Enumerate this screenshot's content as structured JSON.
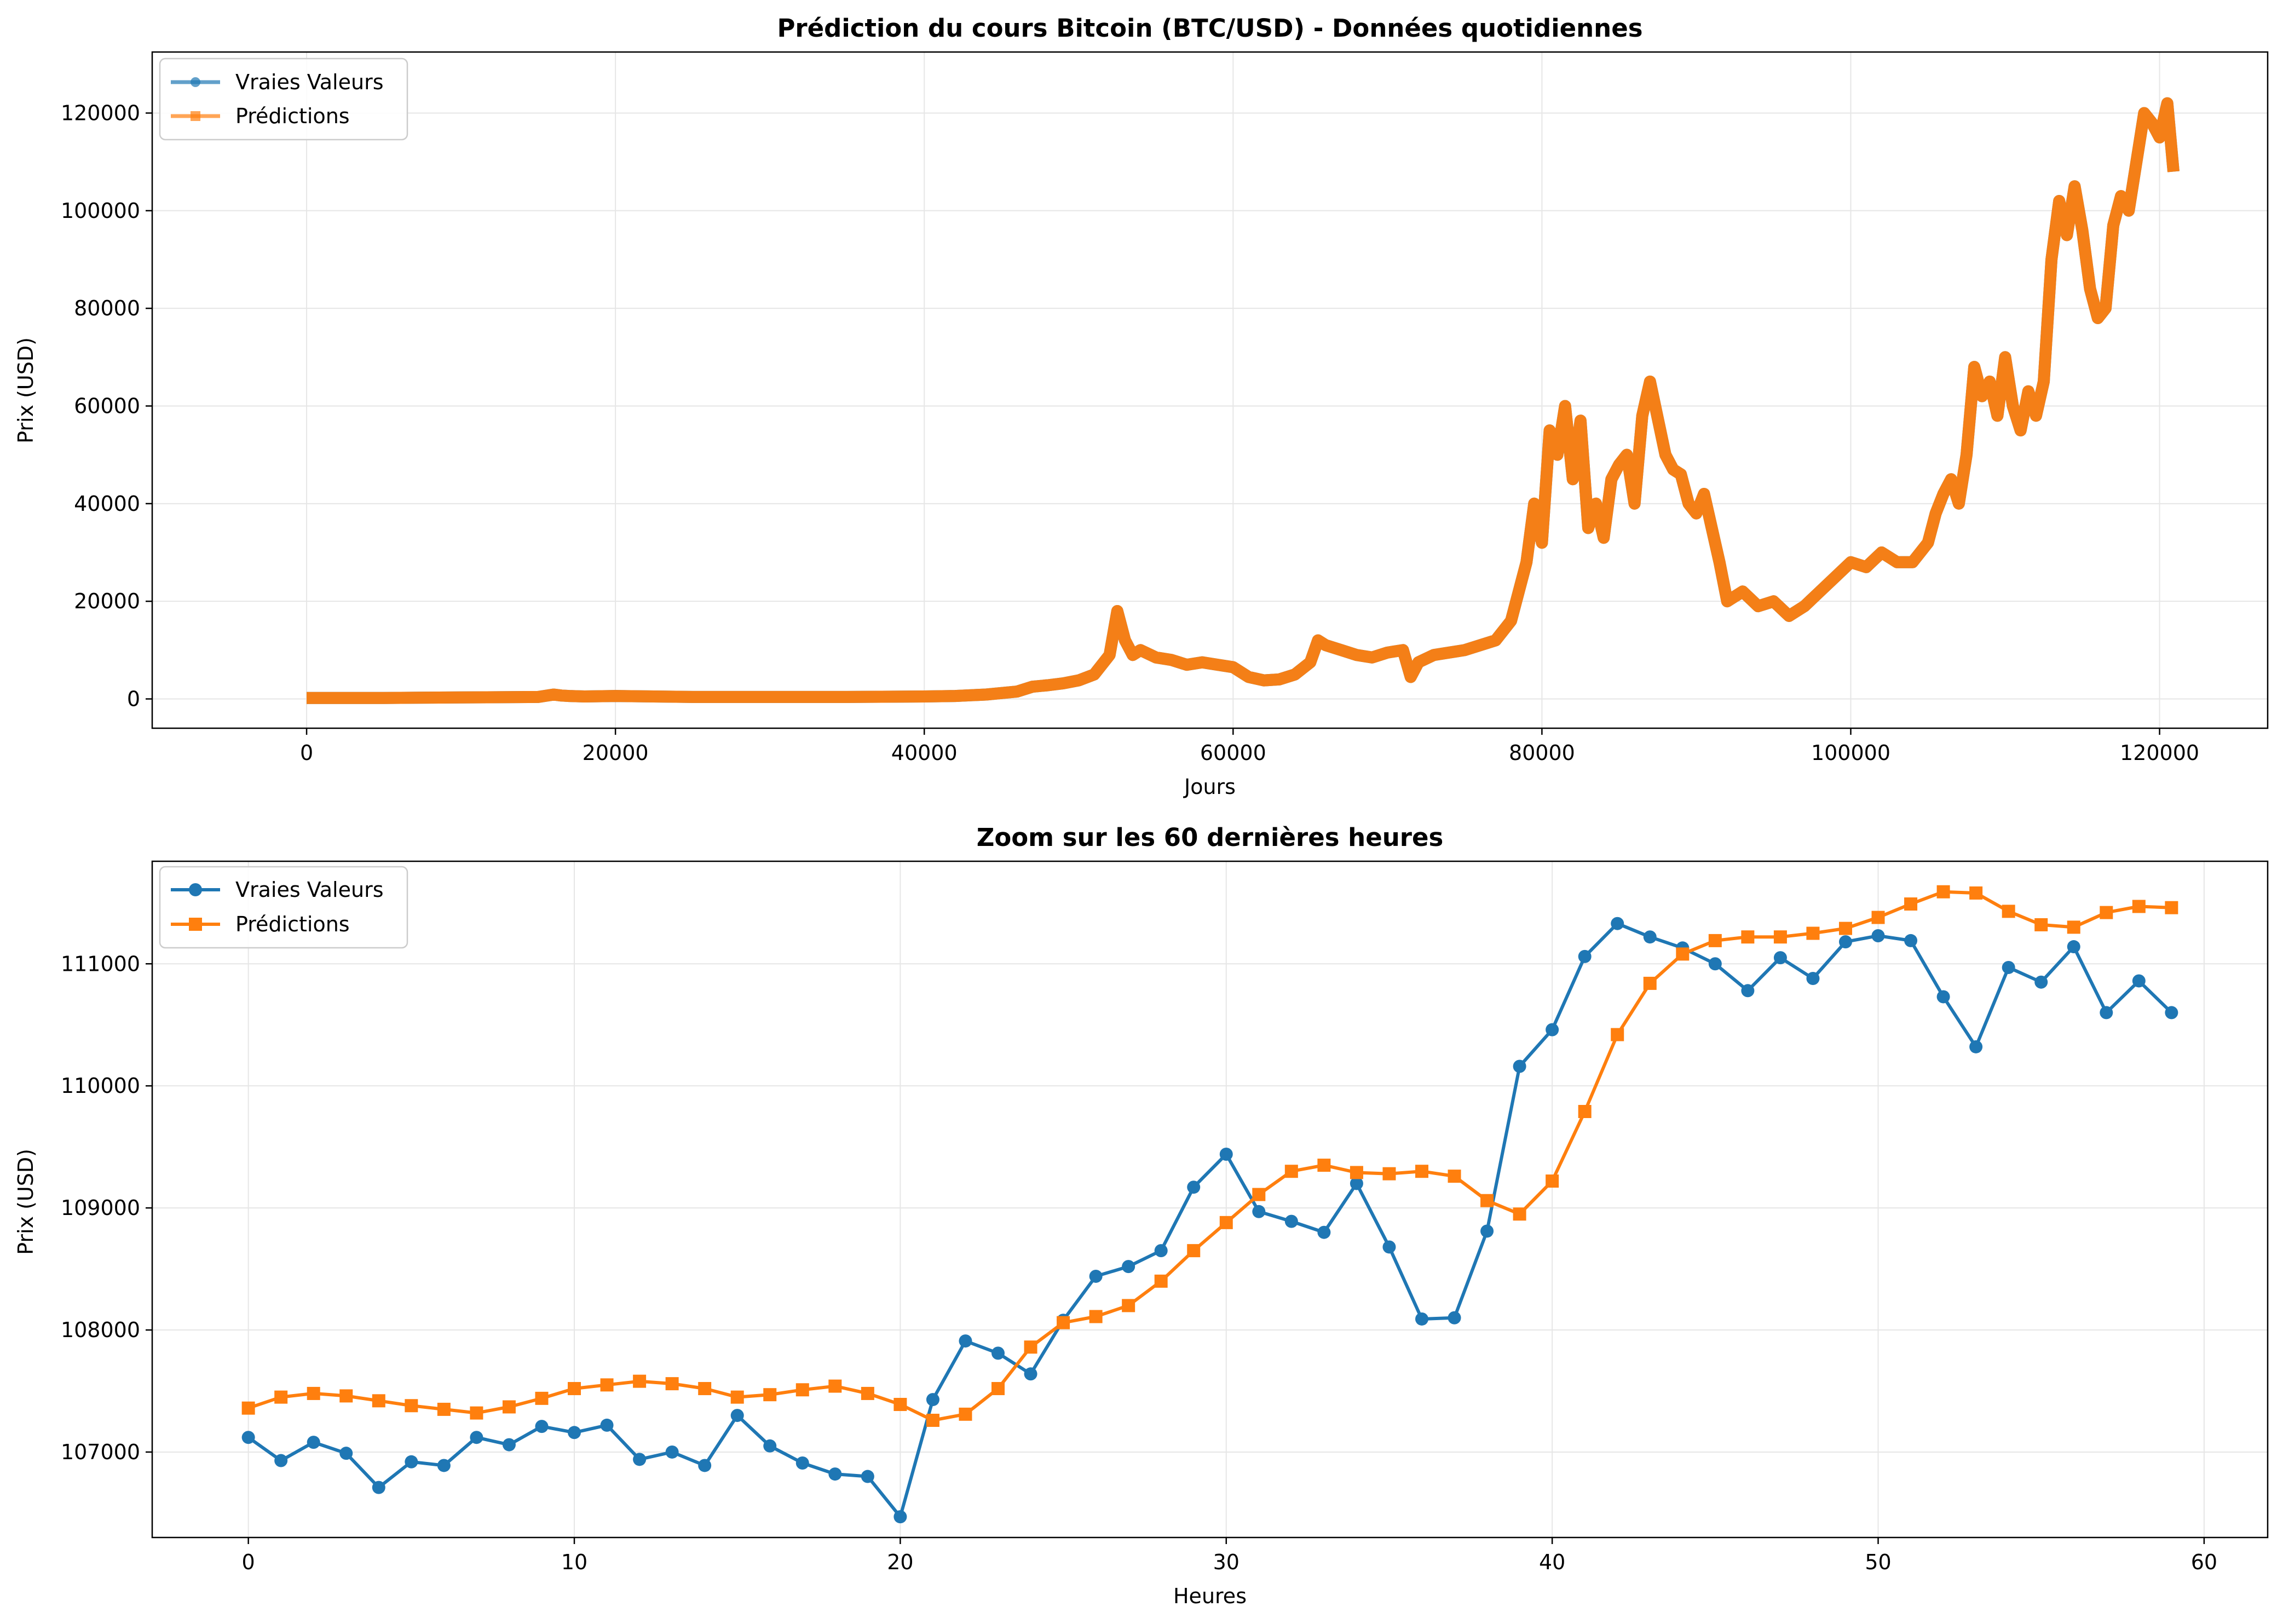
{
  "colors": {
    "true": "#1f77b4",
    "pred": "#ff7f0e",
    "grid": "#e6e6e6",
    "axes": "#000000",
    "legend_border": "#cccccc"
  },
  "chart_data": [
    {
      "type": "line",
      "title": "Prédiction du cours Bitcoin (BTC/USD) - Données quotidiennes",
      "xlabel": "Jours",
      "ylabel": "Prix (USD)",
      "xlim": [
        -10000,
        127000
      ],
      "ylim": [
        -6000,
        132500
      ],
      "xticks": [
        0,
        20000,
        40000,
        60000,
        80000,
        100000,
        120000
      ],
      "yticks": [
        0,
        20000,
        40000,
        60000,
        80000,
        100000,
        120000
      ],
      "grid": true,
      "legend": "top-left",
      "series": [
        {
          "name": "Vraies Valeurs",
          "marker": "circle",
          "color": "#1f77b4"
        },
        {
          "name": "Prédictions",
          "marker": "square",
          "color": "#ff7f0e"
        }
      ],
      "x": [
        0,
        5000,
        10000,
        15000,
        16000,
        16500,
        17000,
        18000,
        20000,
        25000,
        30000,
        35000,
        40000,
        42000,
        44000,
        46000,
        47000,
        48000,
        49000,
        50000,
        51000,
        52000,
        52500,
        53000,
        53500,
        54000,
        55000,
        56000,
        57000,
        58000,
        59000,
        60000,
        61000,
        62000,
        63000,
        64000,
        65000,
        65500,
        66000,
        67000,
        68000,
        69000,
        70000,
        71000,
        71500,
        72000,
        73000,
        74000,
        75000,
        76000,
        77000,
        78000,
        79000,
        79500,
        80000,
        80500,
        81000,
        81500,
        82000,
        82500,
        83000,
        83500,
        84000,
        84500,
        85000,
        85500,
        86000,
        86500,
        87000,
        88000,
        88500,
        89000,
        89500,
        90000,
        90500,
        91000,
        91500,
        92000,
        93000,
        94000,
        95000,
        96000,
        97000,
        98000,
        99000,
        100000,
        101000,
        102000,
        103000,
        104000,
        105000,
        105500,
        106000,
        106500,
        107000,
        107500,
        108000,
        108500,
        109000,
        109500,
        110000,
        110500,
        111000,
        111500,
        112000,
        112500,
        113000,
        113500,
        114000,
        114500,
        115000,
        115500,
        116000,
        116500,
        117000,
        117500,
        118000,
        118500,
        119000,
        119500,
        120000,
        120500,
        120900
      ],
      "values": [
        200,
        200,
        300,
        400,
        900,
        700,
        600,
        500,
        600,
        400,
        400,
        400,
        500,
        600,
        900,
        1500,
        2500,
        2800,
        3200,
        3800,
        5000,
        9000,
        18000,
        12000,
        9000,
        10000,
        8500,
        8000,
        7000,
        7500,
        7000,
        6500,
        4500,
        3800,
        4000,
        5000,
        7500,
        12000,
        11000,
        10000,
        9000,
        8500,
        9500,
        10000,
        4500,
        7500,
        9000,
        9500,
        10000,
        11000,
        12000,
        16000,
        28000,
        40000,
        32000,
        55000,
        50000,
        60000,
        45000,
        57000,
        35000,
        40000,
        33000,
        45000,
        48000,
        50000,
        40000,
        58000,
        65000,
        50000,
        47000,
        46000,
        40000,
        38000,
        42000,
        35000,
        28000,
        20000,
        22000,
        19000,
        20000,
        17000,
        19000,
        22000,
        25000,
        28000,
        27000,
        30000,
        28000,
        28000,
        32000,
        38000,
        42000,
        45000,
        40000,
        50000,
        68000,
        62000,
        65000,
        58000,
        70000,
        60000,
        55000,
        63000,
        58000,
        65000,
        90000,
        102000,
        95000,
        105000,
        96000,
        84000,
        78000,
        80000,
        97000,
        103000,
        100000,
        110000,
        120000,
        118000,
        115000,
        122000,
        108000
      ]
    },
    {
      "type": "line",
      "title": "Zoom sur les 60 dernières heures",
      "xlabel": "Heures",
      "ylabel": "Prix (USD)",
      "xlim": [
        -2.95,
        61.95
      ],
      "ylim": [
        106300,
        111840
      ],
      "xticks": [
        0,
        10,
        20,
        30,
        40,
        50,
        60
      ],
      "yticks": [
        107000,
        108000,
        109000,
        110000,
        111000
      ],
      "grid": true,
      "legend": "top-left",
      "x": [
        0,
        1,
        2,
        3,
        4,
        5,
        6,
        7,
        8,
        9,
        10,
        11,
        12,
        13,
        14,
        15,
        16,
        17,
        18,
        19,
        20,
        21,
        22,
        23,
        24,
        25,
        26,
        27,
        28,
        29,
        30,
        31,
        32,
        33,
        34,
        35,
        36,
        37,
        38,
        39,
        40,
        41,
        42,
        43,
        44,
        45,
        46,
        47,
        48,
        49,
        50,
        51,
        52,
        53,
        54,
        55,
        56,
        57,
        58,
        59
      ],
      "series": [
        {
          "name": "Vraies Valeurs",
          "marker": "circle",
          "color": "#1f77b4",
          "values": [
            107120,
            106930,
            107080,
            106990,
            106710,
            106920,
            106890,
            107120,
            107060,
            107210,
            107160,
            107220,
            106940,
            107000,
            106890,
            107300,
            107050,
            106910,
            106820,
            106800,
            106470,
            107430,
            107910,
            107810,
            107640,
            108080,
            108440,
            108520,
            108650,
            109170,
            109440,
            108970,
            108890,
            108800,
            109200,
            108680,
            108090,
            108100,
            108810,
            110160,
            110460,
            111060,
            111330,
            111220,
            111130,
            111000,
            110780,
            111050,
            110880,
            111180,
            111230,
            111190,
            110730,
            110320,
            110970,
            110850,
            111140,
            110600,
            110860,
            110600
          ]
        },
        {
          "name": "Prédictions",
          "marker": "square",
          "color": "#ff7f0e",
          "values": [
            107360,
            107450,
            107480,
            107460,
            107420,
            107380,
            107350,
            107320,
            107370,
            107440,
            107520,
            107550,
            107580,
            107560,
            107520,
            107450,
            107470,
            107510,
            107540,
            107480,
            107390,
            107260,
            107310,
            107520,
            107860,
            108060,
            108110,
            108200,
            108400,
            108650,
            108880,
            109110,
            109300,
            109350,
            109290,
            109280,
            109300,
            109260,
            109060,
            108950,
            109220,
            109790,
            110420,
            110840,
            111080,
            111190,
            111220,
            111220,
            111250,
            111290,
            111380,
            111490,
            111590,
            111580,
            111430,
            111320,
            111300,
            111420,
            111470,
            111460
          ]
        }
      ]
    }
  ]
}
